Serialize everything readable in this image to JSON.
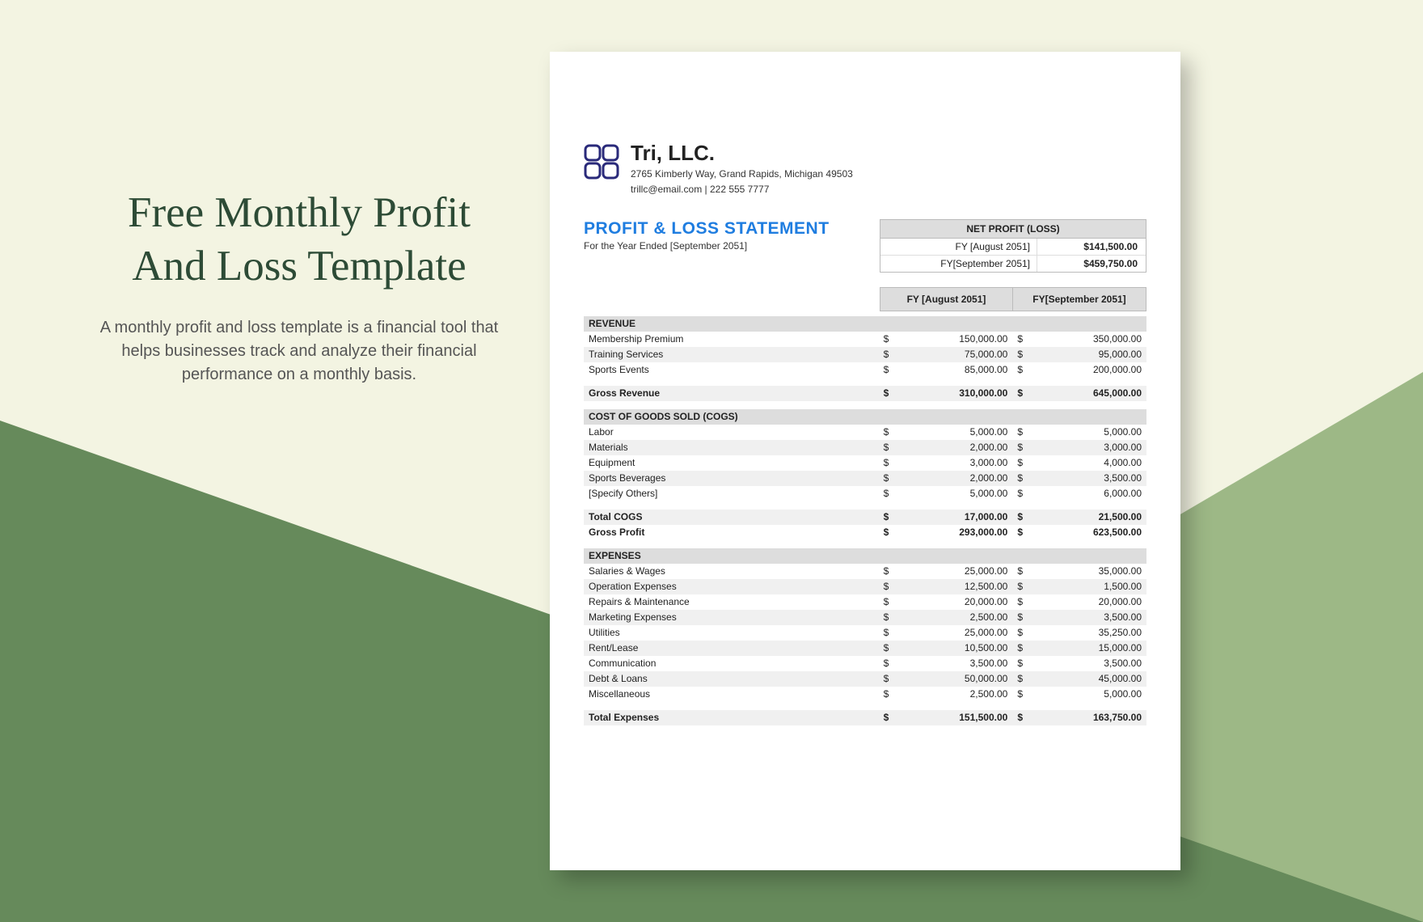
{
  "promo": {
    "title": "Free Monthly Profit And Loss Template",
    "description": "A monthly profit and loss template is a financial tool that helps businesses track and analyze their financial performance on a monthly basis."
  },
  "colors": {
    "bg_cream": "#f3f4e2",
    "triangle_dark": "#668a5b",
    "triangle_light": "#9db886",
    "title_green": "#2d4b36",
    "statement_blue": "#1f7de0",
    "logo_navy": "#2a2a7a"
  },
  "company": {
    "name": "Tri, LLC.",
    "address": "2765 Kimberly Way, Grand Rapids, Michigan 49503",
    "contact": "trillc@email.com | 222 555 7777"
  },
  "statement": {
    "title": "PROFIT & LOSS STATEMENT",
    "period": "For the Year Ended [September 2051]"
  },
  "net_profit": {
    "header": "NET PROFIT (LOSS)",
    "rows": [
      {
        "label": "FY [August 2051]",
        "value": "$141,500.00"
      },
      {
        "label": "FY[September 2051]",
        "value": "$459,750.00"
      }
    ]
  },
  "columns": {
    "fy1": "FY [August 2051]",
    "fy2": "FY[September 2051]"
  },
  "revenue": {
    "header": "REVENUE",
    "items": [
      {
        "label": "Membership Premium",
        "v1": "150,000.00",
        "v2": "350,000.00"
      },
      {
        "label": "Training Services",
        "v1": "75,000.00",
        "v2": "95,000.00"
      },
      {
        "label": "Sports Events",
        "v1": "85,000.00",
        "v2": "200,000.00"
      }
    ],
    "gross_label": "Gross Revenue",
    "gross_v1": "310,000.00",
    "gross_v2": "645,000.00"
  },
  "cogs": {
    "header": "COST OF GOODS SOLD (COGS)",
    "items": [
      {
        "label": "Labor",
        "v1": "5,000.00",
        "v2": "5,000.00"
      },
      {
        "label": "Materials",
        "v1": "2,000.00",
        "v2": "3,000.00"
      },
      {
        "label": "Equipment",
        "v1": "3,000.00",
        "v2": "4,000.00"
      },
      {
        "label": "Sports Beverages",
        "v1": "2,000.00",
        "v2": "3,500.00"
      },
      {
        "label": "[Specify Others]",
        "v1": "5,000.00",
        "v2": "6,000.00"
      }
    ],
    "total_label": "Total COGS",
    "total_v1": "17,000.00",
    "total_v2": "21,500.00",
    "gp_label": "Gross Profit",
    "gp_v1": "293,000.00",
    "gp_v2": "623,500.00"
  },
  "expenses": {
    "header": "EXPENSES",
    "items": [
      {
        "label": "Salaries & Wages",
        "v1": "25,000.00",
        "v2": "35,000.00"
      },
      {
        "label": "Operation Expenses",
        "v1": "12,500.00",
        "v2": "1,500.00"
      },
      {
        "label": "Repairs & Maintenance",
        "v1": "20,000.00",
        "v2": "20,000.00"
      },
      {
        "label": "Marketing Expenses",
        "v1": "2,500.00",
        "v2": "3,500.00"
      },
      {
        "label": "Utilities",
        "v1": "25,000.00",
        "v2": "35,250.00"
      },
      {
        "label": "Rent/Lease",
        "v1": "10,500.00",
        "v2": "15,000.00"
      },
      {
        "label": "Communication",
        "v1": "3,500.00",
        "v2": "3,500.00"
      },
      {
        "label": "Debt & Loans",
        "v1": "50,000.00",
        "v2": "45,000.00"
      },
      {
        "label": "Miscellaneous",
        "v1": "2,500.00",
        "v2": "5,000.00"
      }
    ],
    "total_label": "Total Expenses",
    "total_v1": "151,500.00",
    "total_v2": "163,750.00"
  }
}
